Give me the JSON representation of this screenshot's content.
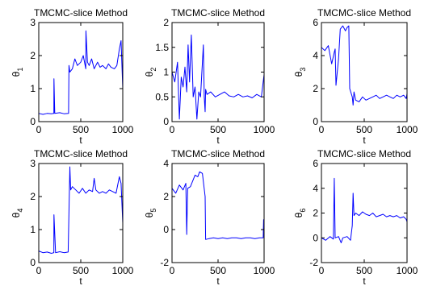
{
  "chart_data": [
    {
      "type": "line",
      "title": "TMCMC-slice Method",
      "xlabel": "t",
      "ylabel": "θ1",
      "ylabel_base": "θ",
      "ylabel_sub": "1",
      "xlim": [
        0,
        1000
      ],
      "ylim": [
        0,
        3
      ],
      "xticks": [
        "0",
        "500",
        "1000"
      ],
      "yticks": [
        "0",
        "1",
        "2",
        "3"
      ],
      "series": [
        {
          "x": [
            0,
            50,
            100,
            150,
            180,
            181,
            190,
            250,
            300,
            355,
            360,
            370,
            400,
            430,
            460,
            500,
            530,
            560,
            562,
            580,
            600,
            630,
            660,
            700,
            730,
            760,
            800,
            830,
            860,
            900,
            930,
            960,
            980,
            1000
          ],
          "values": [
            0.25,
            0.22,
            0.25,
            0.24,
            0.25,
            1.3,
            0.25,
            0.27,
            0.24,
            0.25,
            1.7,
            1.5,
            1.6,
            1.9,
            1.7,
            1.8,
            2.0,
            1.6,
            2.75,
            1.8,
            1.7,
            1.9,
            1.6,
            1.8,
            1.65,
            1.7,
            1.6,
            1.75,
            1.65,
            1.6,
            1.7,
            2.2,
            2.45,
            1.0
          ]
        }
      ]
    },
    {
      "type": "line",
      "title": "TMCMC-slice Method",
      "xlabel": "t",
      "ylabel": "θ2",
      "ylabel_base": "θ",
      "ylabel_sub": "2",
      "xlim": [
        0,
        1000
      ],
      "ylim": [
        0,
        2
      ],
      "xticks": [
        "0",
        "500",
        "1000"
      ],
      "yticks": [
        "0",
        "0.5",
        "1",
        "1.5",
        "2"
      ],
      "series": [
        {
          "x": [
            0,
            30,
            60,
            80,
            100,
            120,
            140,
            160,
            175,
            190,
            210,
            230,
            250,
            270,
            290,
            310,
            340,
            350,
            360,
            365,
            380,
            420,
            470,
            520,
            570,
            620,
            670,
            720,
            770,
            820,
            870,
            920,
            970,
            1000
          ],
          "values": [
            1.0,
            0.8,
            1.2,
            0.05,
            0.9,
            0.7,
            1.1,
            0.6,
            1.55,
            0.8,
            1.75,
            0.5,
            0.7,
            0.05,
            0.6,
            0.5,
            1.55,
            0.5,
            0.2,
            0.65,
            0.55,
            0.6,
            0.5,
            0.55,
            0.6,
            0.52,
            0.5,
            0.55,
            0.5,
            0.52,
            0.48,
            0.55,
            0.5,
            0.95
          ]
        }
      ]
    },
    {
      "type": "line",
      "title": "TMCMC-slice Method",
      "xlabel": "t",
      "ylabel": "θ3",
      "ylabel_base": "θ",
      "ylabel_sub": "3",
      "xlim": [
        0,
        1000
      ],
      "ylim": [
        0,
        6
      ],
      "xticks": [
        "0",
        "500",
        "1000"
      ],
      "yticks": [
        "0",
        "2",
        "4",
        "6"
      ],
      "series": [
        {
          "x": [
            0,
            40,
            80,
            120,
            150,
            160,
            170,
            200,
            220,
            250,
            280,
            300,
            320,
            330,
            360,
            370,
            380,
            400,
            440,
            480,
            520,
            560,
            600,
            640,
            680,
            720,
            760,
            800,
            840,
            880,
            920,
            960,
            990,
            1000
          ],
          "values": [
            4.5,
            4.3,
            4.6,
            3.5,
            4.2,
            4.4,
            2.2,
            3.8,
            5.6,
            5.8,
            5.5,
            5.7,
            5.8,
            2.0,
            1.5,
            1.0,
            1.8,
            1.3,
            1.2,
            1.5,
            1.3,
            1.4,
            1.5,
            1.6,
            1.4,
            1.5,
            1.6,
            1.5,
            1.4,
            1.6,
            1.5,
            1.6,
            1.4,
            1.7
          ]
        }
      ]
    },
    {
      "type": "line",
      "title": "TMCMC-slice Method",
      "xlabel": "t",
      "ylabel": "θ4",
      "ylabel_base": "θ",
      "ylabel_sub": "4",
      "xlim": [
        0,
        1000
      ],
      "ylim": [
        0,
        3
      ],
      "xticks": [
        "0",
        "500",
        "1000"
      ],
      "yticks": [
        "0",
        "1",
        "2",
        "3"
      ],
      "series": [
        {
          "x": [
            0,
            50,
            100,
            150,
            180,
            181,
            200,
            250,
            300,
            350,
            370,
            380,
            400,
            440,
            480,
            520,
            560,
            600,
            640,
            660,
            680,
            720,
            760,
            800,
            840,
            880,
            920,
            960,
            980,
            1000
          ],
          "values": [
            0.35,
            0.3,
            0.32,
            0.28,
            0.3,
            1.45,
            0.3,
            0.33,
            0.3,
            0.32,
            2.9,
            2.2,
            2.3,
            2.2,
            2.1,
            2.25,
            2.1,
            2.2,
            2.15,
            2.55,
            2.2,
            2.1,
            2.15,
            2.1,
            2.2,
            2.15,
            2.1,
            2.6,
            2.4,
            1.2
          ]
        }
      ]
    },
    {
      "type": "line",
      "title": "TMCMC-slice Method",
      "xlabel": "t",
      "ylabel": "θ5",
      "ylabel_base": "θ",
      "ylabel_sub": "5",
      "xlim": [
        0,
        1000
      ],
      "ylim": [
        -2,
        4
      ],
      "xticks": [
        "0",
        "500",
        "1000"
      ],
      "yticks": [
        "-2",
        "0",
        "2",
        "4"
      ],
      "series": [
        {
          "x": [
            0,
            40,
            80,
            120,
            150,
            160,
            170,
            200,
            250,
            280,
            300,
            330,
            360,
            365,
            400,
            450,
            500,
            550,
            600,
            650,
            700,
            750,
            800,
            850,
            900,
            950,
            990,
            995,
            1000
          ],
          "values": [
            2.5,
            2.2,
            2.7,
            2.4,
            2.8,
            -0.3,
            2.5,
            2.6,
            3.3,
            3.2,
            3.5,
            3.4,
            2.0,
            -0.6,
            -0.55,
            -0.5,
            -0.55,
            -0.5,
            -0.55,
            -0.5,
            -0.5,
            -0.55,
            -0.5,
            -0.5,
            -0.55,
            -0.5,
            -0.5,
            0.6,
            -0.5
          ]
        }
      ]
    },
    {
      "type": "line",
      "title": "TMCMC-slice Method",
      "xlabel": "t",
      "ylabel": "θ6",
      "ylabel_base": "θ",
      "ylabel_sub": "6",
      "xlim": [
        0,
        1000
      ],
      "ylim": [
        -2,
        6
      ],
      "xticks": [
        "0",
        "500",
        "1000"
      ],
      "yticks": [
        "-2",
        "0",
        "2",
        "4",
        "6"
      ],
      "series": [
        {
          "x": [
            0,
            50,
            100,
            140,
            150,
            160,
            200,
            230,
            250,
            300,
            340,
            360,
            370,
            380,
            400,
            440,
            480,
            520,
            560,
            600,
            640,
            680,
            720,
            760,
            800,
            840,
            880,
            920,
            960,
            990,
            1000
          ],
          "values": [
            0.0,
            -0.2,
            0.1,
            -0.1,
            4.8,
            0.0,
            0.1,
            -0.4,
            0.0,
            0.1,
            -0.2,
            1.0,
            3.6,
            1.8,
            2.0,
            1.8,
            2.1,
            1.9,
            1.8,
            2.0,
            1.7,
            1.8,
            1.9,
            1.7,
            1.8,
            1.7,
            1.8,
            1.6,
            1.7,
            1.5,
            1.3
          ]
        }
      ]
    }
  ],
  "colors": {
    "line": "#0000ff",
    "axes": "#000000",
    "background": "#ffffff"
  }
}
